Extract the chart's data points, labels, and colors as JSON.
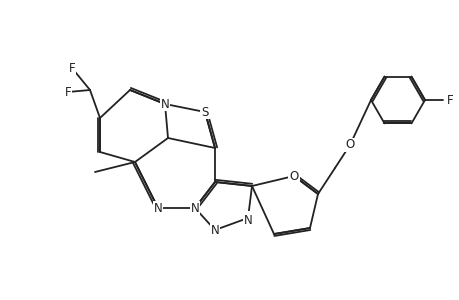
{
  "background_color": "#ffffff",
  "line_color": "#222222",
  "line_width": 1.3,
  "font_size": 8.5,
  "figsize": [
    4.6,
    3.0
  ],
  "dpi": 100,
  "xlim": [
    0,
    4.6
  ],
  "ylim": [
    0,
    3.0
  ]
}
